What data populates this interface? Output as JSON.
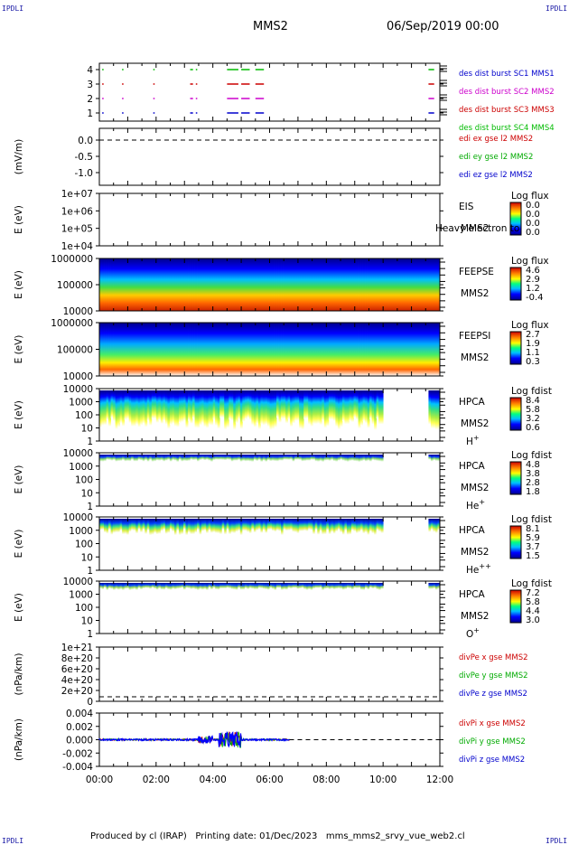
{
  "header": {
    "corner_label": "IPDLI",
    "spacecraft": "MMS2",
    "datetime": "06/Sep/2019 00:00"
  },
  "footer": {
    "producer": "Produced by cl (IRAP)",
    "printing_date": "Printing date: 01/Dec/2023",
    "file": "mms_mms2_srvy_vue_web2.cl"
  },
  "chart_data": {
    "type": "time-series stack",
    "x_ticks": [
      "00:00",
      "02:00",
      "04:00",
      "06:00",
      "08:00",
      "10:00",
      "12:00"
    ],
    "x_range_hours": [
      0,
      12
    ],
    "panels": [
      {
        "id": "burst",
        "yticks": [
          "4",
          "3",
          "2",
          "1"
        ],
        "legend": [
          {
            "text": "des dist burst SC1 MMS1",
            "color": "#0000cc"
          },
          {
            "text": "des dist burst SC2 MMS2",
            "color": "#cc00cc"
          },
          {
            "text": "des dist burst SC3 MMS3",
            "color": "#cc0000"
          },
          {
            "text": "des dist burst SC4 MMS4",
            "color": "#00bb00"
          }
        ],
        "intervals_hours": [
          [
            0.1,
            0.15
          ],
          [
            0.8,
            0.85
          ],
          [
            1.9,
            1.95
          ],
          [
            3.2,
            3.3
          ],
          [
            3.4,
            3.45
          ],
          [
            4.5,
            4.9
          ],
          [
            5.0,
            5.3
          ],
          [
            5.5,
            5.8
          ],
          [
            11.6,
            11.8
          ]
        ]
      },
      {
        "id": "edi",
        "ylabel": "(mV/m)",
        "yticks": [
          "0.0",
          "-0.5",
          "-1.0"
        ],
        "ylim": [
          -1.2,
          0.1
        ],
        "value": 0.0,
        "legend": [
          {
            "text": "edi ex gse l2 MMS2",
            "color": "#cc0000"
          },
          {
            "text": "edi ey gse l2 MMS2",
            "color": "#00aa00"
          },
          {
            "text": "edi ez gse l2 MMS2",
            "color": "#0000cc"
          }
        ]
      },
      {
        "id": "eis",
        "ylabel": "E (eV)",
        "yticks": [
          "1e+07",
          "1e+06",
          "1e+05",
          "1e+04"
        ],
        "label": "EIS",
        "overlay": "Heavy electron to",
        "sc": "MMS2",
        "cbar_title": "Log flux",
        "cbar_ticks": [
          "0.0",
          "0.0",
          "0.0",
          "0.0"
        ]
      },
      {
        "id": "feepse",
        "ylabel": "E (eV)",
        "yticks": [
          "1000000",
          "100000",
          "10000"
        ],
        "label": "FEEPSE",
        "sc": "MMS2",
        "cbar_title": "Log flux",
        "cbar_ticks": [
          "4.6",
          "2.9",
          "1.2",
          "-0.4"
        ],
        "coverage_hours": [
          0,
          12
        ]
      },
      {
        "id": "feepsi",
        "ylabel": "E (eV)",
        "yticks": [
          "1000000",
          "100000",
          "10000"
        ],
        "label": "FEEPSI",
        "sc": "MMS2",
        "cbar_title": "Log flux",
        "cbar_ticks": [
          "2.7",
          "1.9",
          "1.1",
          "0.3"
        ],
        "coverage_hours": [
          0,
          12
        ]
      },
      {
        "id": "hpca_h",
        "ylabel": "E (eV)",
        "yticks": [
          "10000",
          "1000",
          "100",
          "10",
          "1"
        ],
        "label": "HPCA",
        "sc": "MMS2",
        "species": "H",
        "species_sup": "+",
        "cbar_title": "Log fdist",
        "cbar_ticks": [
          "8.4",
          "5.8",
          "3.2",
          "0.6"
        ],
        "gaps_hours": [
          [
            10.0,
            11.6
          ]
        ]
      },
      {
        "id": "hpca_he",
        "ylabel": "E (eV)",
        "yticks": [
          "10000",
          "1000",
          "100",
          "10",
          "1"
        ],
        "label": "HPCA",
        "sc": "MMS2",
        "species": "He",
        "species_sup": "+",
        "cbar_title": "Log fdist",
        "cbar_ticks": [
          "4.8",
          "3.8",
          "2.8",
          "1.8"
        ],
        "gaps_hours": [
          [
            10.0,
            11.6
          ]
        ]
      },
      {
        "id": "hpca_hepp",
        "ylabel": "E (eV)",
        "yticks": [
          "10000",
          "1000",
          "100",
          "10",
          "1"
        ],
        "label": "HPCA",
        "sc": "MMS2",
        "species": "He",
        "species_sup": "++",
        "cbar_title": "Log fdist",
        "cbar_ticks": [
          "8.1",
          "5.9",
          "3.7",
          "1.5"
        ],
        "gaps_hours": [
          [
            10.0,
            11.6
          ]
        ]
      },
      {
        "id": "hpca_o",
        "ylabel": "E (eV)",
        "yticks": [
          "10000",
          "1000",
          "100",
          "10",
          "1"
        ],
        "label": "HPCA",
        "sc": "MMS2",
        "species": "O",
        "species_sup": "+",
        "cbar_title": "Log fdist",
        "cbar_ticks": [
          "7.2",
          "5.8",
          "4.4",
          "3.0"
        ],
        "gaps_hours": [
          [
            10.0,
            11.6
          ]
        ]
      },
      {
        "id": "divpe",
        "ylabel": "(nPa/km)",
        "yticks": [
          "1e+21",
          "8e+20",
          "6e+20",
          "4e+20",
          "2e+20",
          "0"
        ],
        "ylim": [
          0,
          1e+21
        ],
        "value": 0,
        "legend": [
          {
            "text": "divPe x gse MMS2",
            "color": "#cc0000"
          },
          {
            "text": "divPe y gse MMS2",
            "color": "#00aa00"
          },
          {
            "text": "divPe z gse MMS2",
            "color": "#0000cc"
          }
        ]
      },
      {
        "id": "divpi",
        "ylabel": "(nPa/km)",
        "yticks": [
          "0.004",
          "0.002",
          "0.000",
          "-0.002",
          "-0.004"
        ],
        "ylim": [
          -0.0045,
          0.0045
        ],
        "data_end_hours": 6.7,
        "legend": [
          {
            "text": "divPi x gse MMS2",
            "color": "#cc0000"
          },
          {
            "text": "divPi y gse MMS2",
            "color": "#00aa00"
          },
          {
            "text": "divPi z gse MMS2",
            "color": "#0000cc"
          }
        ]
      }
    ]
  }
}
